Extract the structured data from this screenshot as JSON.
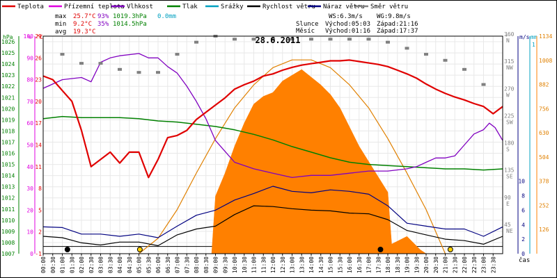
{
  "chart_data": {
    "type": "line",
    "title": "28.6.2011",
    "xlabel": "čas",
    "legend": [
      {
        "name": "Teplota",
        "color": "#e00000"
      },
      {
        "name": "Přízemní teplota",
        "color": "#e000e0"
      },
      {
        "name": "Vlhkost",
        "color": "#8000c0"
      },
      {
        "name": "Tlak",
        "color": "#008000"
      },
      {
        "name": "Srážky",
        "color": "#00a0c0"
      },
      {
        "name": "Rychlost větru",
        "color": "#000000"
      },
      {
        "name": "Náraz větru",
        "color": "#000080"
      },
      {
        "name": "Směr větru",
        "color": "#808080"
      }
    ],
    "stats": {
      "max": {
        "label": "max",
        "temp": "25.7°C",
        "hum": "93%",
        "press": "1019.3hPa",
        "rain": "0.0mm"
      },
      "min": {
        "label": "min",
        "temp": "9.2°C",
        "hum": "35%",
        "press": "1014.5hPa"
      },
      "avg": {
        "label": "avg",
        "temp": "19.3°C"
      }
    },
    "wind_info": {
      "ws": "WS:6.3m/s",
      "wg": "WG:9.8m/s"
    },
    "sun_info": {
      "label": "Slunce",
      "rise": "Východ:05:03",
      "set": "Západ:21:16"
    },
    "moon_info": {
      "label": "Měsíc",
      "rise": "Východ:01:16",
      "set": "Západ:17:37"
    },
    "axes": {
      "hpa": {
        "unit": "hPa",
        "ticks": [
          "1026",
          "1025",
          "1024",
          "1023",
          "1022",
          "1021",
          "1020",
          "1019",
          "1018",
          "1017",
          "1016",
          "1015",
          "1014",
          "1013",
          "1012",
          "1011",
          "1010",
          "1009",
          "1008",
          "1007"
        ],
        "range": [
          1007,
          1026.5
        ]
      },
      "pct": {
        "unit": "%",
        "ticks": [
          "100",
          "90",
          "80",
          "70",
          "60",
          "50",
          "40",
          "30",
          "20",
          "10",
          "0"
        ],
        "range": [
          0,
          100
        ]
      },
      "temp": {
        "unit": "°C",
        "ticks": [
          "29",
          "26",
          "23",
          "20",
          "17",
          "14",
          "11",
          "8",
          "5",
          "2",
          "-1"
        ],
        "range": [
          -1,
          29
        ]
      },
      "dir": {
        "unit": "°",
        "ticks": [
          "360",
          "315",
          "270",
          "225",
          "180",
          "135",
          "90",
          "45"
        ],
        "labels": [
          "N",
          "NW",
          "W",
          "SW",
          "S",
          "SE",
          "E",
          "NE"
        ],
        "range": [
          0,
          360
        ]
      },
      "ms": {
        "unit": "m/s",
        "ticks": [
          "10",
          "8",
          "6",
          "4",
          "2",
          "0"
        ],
        "range": [
          0,
          30
        ]
      },
      "mm": {
        "unit": "mm",
        "ticks": [
          "1"
        ],
        "range": [
          0,
          1
        ]
      },
      "wm2": {
        "ticks": [
          "1134",
          "1008",
          "882",
          "756",
          "630",
          "504",
          "378",
          "252",
          "126"
        ],
        "range": [
          0,
          1134
        ]
      },
      "x": {
        "range": [
          0,
          24
        ],
        "ticks": [
          "00:00",
          "00:30",
          "01:00",
          "01:30",
          "02:00",
          "02:30",
          "03:00",
          "03:30",
          "04:00",
          "04:30",
          "05:00",
          "05:30",
          "06:00",
          "06:30",
          "07:00",
          "07:30",
          "08:00",
          "08:30",
          "09:00",
          "09:30",
          "10:00",
          "10:30",
          "11:00",
          "11:30",
          "12:00",
          "12:30",
          "13:00",
          "13:30",
          "14:00",
          "14:30",
          "15:00",
          "15:30",
          "16:00",
          "16:30",
          "17:00",
          "17:30",
          "18:00",
          "18:30",
          "19:00",
          "19:30",
          "20:00",
          "20:30",
          "21:00",
          "21:30",
          "22:00",
          "22:30",
          "23:00",
          "23:30"
        ]
      }
    },
    "series": {
      "temperature": {
        "x": [
          0,
          0.5,
          1,
          1.5,
          2,
          2.5,
          3,
          3.5,
          4,
          4.5,
          5,
          5.5,
          6,
          6.5,
          7,
          7.5,
          8,
          8.5,
          9,
          9.5,
          10,
          10.5,
          11,
          11.5,
          12,
          12.5,
          13,
          13.5,
          14,
          14.5,
          15,
          15.5,
          16,
          16.5,
          17,
          17.5,
          18,
          18.5,
          19,
          19.5,
          20,
          20.5,
          21,
          21.5,
          22,
          22.5,
          23,
          23.5,
          24
        ],
        "y": [
          23.5,
          23,
          21.5,
          20,
          16,
          11,
          12,
          13,
          11.5,
          13,
          13,
          9.5,
          12,
          15,
          15.3,
          16,
          17.5,
          18.5,
          19.5,
          20.5,
          21.7,
          22.3,
          22.8,
          23.5,
          23.8,
          24.3,
          24.7,
          25,
          25.2,
          25.4,
          25.6,
          25.6,
          25.7,
          25.5,
          25.3,
          25.1,
          24.8,
          24.3,
          23.8,
          23.2,
          22.4,
          21.7,
          21.1,
          20.6,
          20.2,
          19.7,
          19.3,
          18.3,
          19.3
        ]
      },
      "humidity": {
        "x": [
          0,
          1,
          2,
          2.5,
          3,
          3.5,
          4,
          5,
          5.5,
          6,
          6.5,
          7,
          7.5,
          8,
          8.5,
          9,
          9.5,
          10,
          11,
          12,
          13,
          14,
          15,
          16,
          17,
          18,
          19,
          19.5,
          20,
          20.5,
          21,
          21.5,
          22,
          22.5,
          23,
          23.3,
          23.6,
          24
        ],
        "y": [
          76,
          80,
          81,
          79,
          88,
          90,
          91,
          92,
          90,
          90,
          86,
          83,
          77,
          70,
          62,
          52,
          47,
          42,
          39,
          37,
          35,
          36,
          36,
          37,
          38,
          38,
          39,
          40,
          42,
          44,
          44,
          45,
          50,
          55,
          57,
          60,
          58,
          52
        ]
      },
      "pressure_hpa": {
        "x": [
          0,
          1,
          2,
          3,
          4,
          5,
          6,
          7,
          8,
          9,
          10,
          11,
          12,
          13,
          14,
          15,
          16,
          17,
          18,
          19,
          20,
          21,
          22,
          23,
          24
        ],
        "y": [
          1019.1,
          1019.3,
          1019.2,
          1019.2,
          1019.2,
          1019.1,
          1018.9,
          1018.8,
          1018.6,
          1018.4,
          1018.1,
          1017.7,
          1017.2,
          1016.6,
          1016.1,
          1015.6,
          1015.2,
          1015.0,
          1014.9,
          1014.8,
          1014.7,
          1014.6,
          1014.6,
          1014.5,
          1014.6
        ]
      },
      "wind_speed": {
        "x": [
          0,
          1,
          2,
          3,
          4,
          5,
          6,
          7,
          8,
          9,
          10,
          11,
          12,
          13,
          14,
          15,
          16,
          17,
          18,
          19,
          20,
          21,
          22,
          23,
          24
        ],
        "y": [
          2.4,
          2.2,
          1.5,
          1.2,
          1.6,
          1.6,
          1.1,
          2.6,
          3.4,
          3.8,
          5.4,
          6.6,
          6.5,
          6.2,
          6.0,
          5.9,
          5.6,
          5.5,
          4.7,
          3.2,
          2.6,
          2.0,
          1.8,
          1.3,
          2.4
        ]
      },
      "wind_gust": {
        "x": [
          0,
          1,
          2,
          3,
          4,
          5,
          6,
          7,
          8,
          9,
          10,
          11,
          12,
          13,
          14,
          15,
          16,
          17,
          18,
          19,
          20,
          21,
          22,
          23,
          24
        ],
        "y": [
          3.7,
          3.6,
          2.7,
          2.7,
          2.4,
          2.7,
          2.2,
          3.8,
          5.3,
          6.0,
          7.4,
          8.3,
          9.3,
          8.6,
          8.4,
          8.8,
          8.6,
          8.2,
          6.6,
          4.2,
          3.8,
          3.4,
          3.4,
          2.4,
          3.7
        ]
      },
      "solar_radiation": {
        "x": [
          5,
          6,
          7,
          8,
          8.8,
          9,
          9.5,
          10,
          10.5,
          11,
          11.5,
          12,
          12.5,
          13,
          13.5,
          14,
          14.5,
          15,
          15.5,
          16,
          16.5,
          17,
          17.5,
          18,
          18.2,
          19,
          19.7,
          20
        ],
        "y": [
          0,
          0,
          0,
          0,
          0,
          300,
          420,
          560,
          680,
          780,
          820,
          840,
          900,
          930,
          960,
          920,
          880,
          830,
          760,
          660,
          560,
          480,
          400,
          320,
          50,
          90,
          20,
          0
        ]
      },
      "clear_sky_radiation": {
        "x": [
          5,
          6,
          7,
          8,
          9,
          10,
          11,
          12,
          13,
          14,
          15,
          16,
          17,
          18,
          19,
          20,
          21
        ],
        "y": [
          0,
          80,
          230,
          420,
          600,
          760,
          880,
          970,
          1010,
          1010,
          970,
          880,
          760,
          600,
          420,
          230,
          0
        ]
      },
      "wind_direction": {
        "x": [
          1,
          2,
          3,
          4,
          5,
          6,
          7,
          8,
          9,
          10,
          11,
          12,
          13,
          14,
          15,
          16,
          17,
          18,
          19,
          20,
          21,
          22,
          23
        ],
        "y": [
          330,
          315,
          315,
          305,
          300,
          300,
          330,
          350,
          360,
          355,
          355,
          355,
          355,
          355,
          355,
          355,
          355,
          350,
          340,
          330,
          320,
          305,
          280
        ]
      }
    },
    "markers": {
      "moonrise": "01:16",
      "sunrise": "05:03",
      "moonset": "17:37",
      "sunset": "21:16"
    }
  }
}
